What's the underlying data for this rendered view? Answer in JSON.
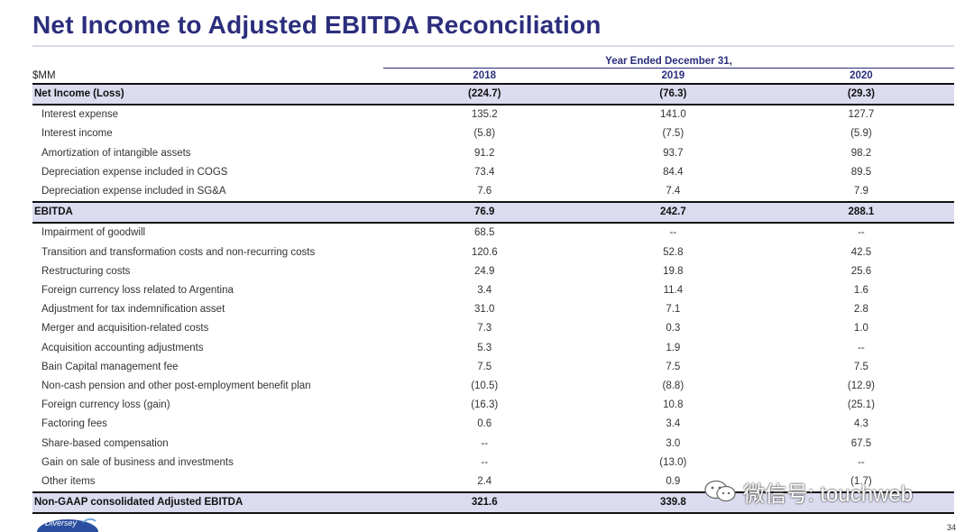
{
  "page": {
    "title": "Net Income to Adjusted EBITDA Reconciliation",
    "period_header": "Year Ended December 31,",
    "page_number": "34"
  },
  "table": {
    "unit_label": "$MM",
    "years": [
      "2018",
      "2019",
      "2020"
    ],
    "rows": [
      {
        "label": "Net Income (Loss)",
        "values": [
          "(224.7)",
          "(76.3)",
          "(29.3)"
        ],
        "highlight": true
      },
      {
        "label": "Interest expense",
        "values": [
          "135.2",
          "141.0",
          "127.7"
        ]
      },
      {
        "label": "Interest income",
        "values": [
          "(5.8)",
          "(7.5)",
          "(5.9)"
        ]
      },
      {
        "label": "Amortization of intangible assets",
        "values": [
          "91.2",
          "93.7",
          "98.2"
        ]
      },
      {
        "label": "Depreciation expense included in COGS",
        "values": [
          "73.4",
          "84.4",
          "89.5"
        ]
      },
      {
        "label": "Depreciation expense included in SG&A",
        "values": [
          "7.6",
          "7.4",
          "7.9"
        ]
      },
      {
        "label": "EBITDA",
        "values": [
          "76.9",
          "242.7",
          "288.1"
        ],
        "highlight": true
      },
      {
        "label": "Impairment of goodwill",
        "values": [
          "68.5",
          "--",
          "--"
        ]
      },
      {
        "label": "Transition and transformation costs and non-recurring costs",
        "values": [
          "120.6",
          "52.8",
          "42.5"
        ]
      },
      {
        "label": "Restructuring costs",
        "values": [
          "24.9",
          "19.8",
          "25.6"
        ]
      },
      {
        "label": "Foreign currency loss related to Argentina",
        "values": [
          "3.4",
          "11.4",
          "1.6"
        ]
      },
      {
        "label": "Adjustment for tax indemnification asset",
        "values": [
          "31.0",
          "7.1",
          "2.8"
        ]
      },
      {
        "label": "Merger and acquisition-related costs",
        "values": [
          "7.3",
          "0.3",
          "1.0"
        ]
      },
      {
        "label": "Acquisition accounting adjustments",
        "values": [
          "5.3",
          "1.9",
          "--"
        ]
      },
      {
        "label": "Bain Capital management fee",
        "values": [
          "7.5",
          "7.5",
          "7.5"
        ]
      },
      {
        "label": "Non-cash pension and other post-employment benefit plan",
        "values": [
          "(10.5)",
          "(8.8)",
          "(12.9)"
        ]
      },
      {
        "label": "Foreign currency loss (gain)",
        "values": [
          "(16.3)",
          "10.8",
          "(25.1)"
        ]
      },
      {
        "label": "Factoring fees",
        "values": [
          "0.6",
          "3.4",
          "4.3"
        ]
      },
      {
        "label": "Share-based compensation",
        "values": [
          "--",
          "3.0",
          "67.5"
        ]
      },
      {
        "label": "Gain on sale of business and investments",
        "values": [
          "--",
          "(13.0)",
          "--"
        ]
      },
      {
        "label": "Other items",
        "values": [
          "2.4",
          "0.9",
          "(1.7)"
        ]
      },
      {
        "label": "Non-GAAP consolidated Adjusted EBITDA",
        "values": [
          "321.6",
          "339.8",
          ""
        ],
        "highlight": true
      }
    ]
  },
  "watermark": {
    "text": "微信号: touchweb",
    "icon": "wechat-icon"
  },
  "logo": {
    "text": "Diversey",
    "icon": "diversey-logo"
  },
  "colors": {
    "title": "#2b2e7c",
    "highlight_row": "#dcdcf0"
  }
}
